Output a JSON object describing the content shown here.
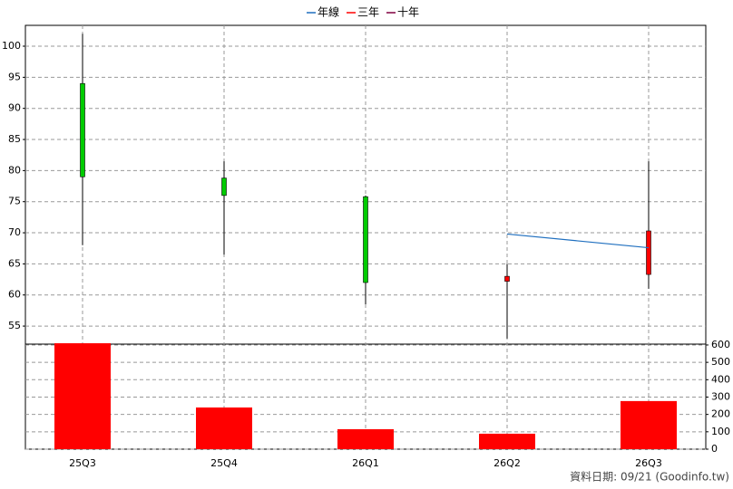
{
  "chart_data": {
    "type": "candlestick",
    "categories": [
      "25Q3",
      "25Q4",
      "26Q1",
      "26Q2",
      "26Q3"
    ],
    "open": [
      94,
      78.8,
      75.8,
      62.2,
      63.3
    ],
    "high": [
      102,
      81.5,
      76,
      65,
      81.5
    ],
    "low": [
      68,
      66.5,
      58.5,
      53,
      61
    ],
    "close": [
      79,
      76,
      62,
      63,
      70.3
    ],
    "up_color": "#ff0000",
    "down_color": "#00cc00",
    "series": [
      {
        "name": "年線",
        "color": "#1f6fbf",
        "values": [
          null,
          null,
          null,
          69.8,
          67.6
        ]
      },
      {
        "name": "三年",
        "color": "#ff0000",
        "values": [
          null,
          null,
          null,
          null,
          null
        ]
      },
      {
        "name": "十年",
        "color": "#800040",
        "values": [
          null,
          null,
          null,
          null,
          null
        ]
      }
    ],
    "ylim": [
      52.1,
      103.35
    ],
    "yticks": [
      55,
      60,
      65,
      70,
      75,
      80,
      85,
      90,
      95,
      100
    ],
    "grid": true,
    "legend": "top",
    "volume": {
      "type": "bar",
      "values": [
        610,
        240,
        115,
        89,
        277
      ],
      "color": "#ff0000",
      "ylim": [
        0,
        605
      ],
      "yticks": [
        0,
        100,
        200,
        300,
        400,
        500,
        600
      ]
    },
    "footer": "資料日期: 09/21  (Goodinfo.tw)"
  }
}
